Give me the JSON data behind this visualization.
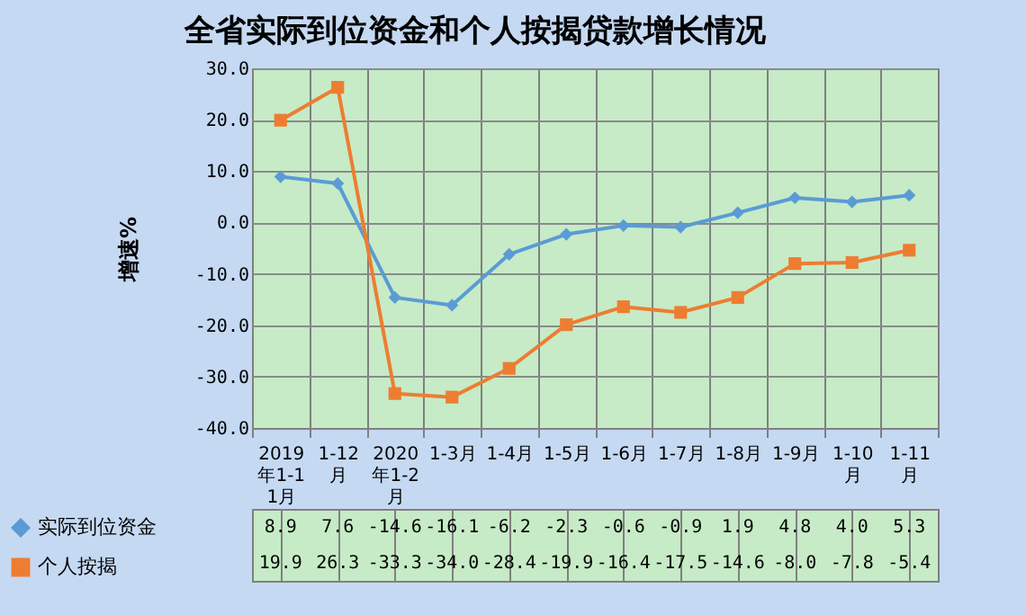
{
  "chart_data": {
    "type": "line",
    "title": "全省实际到位资金和个人按揭贷款增长情况",
    "ylabel": "增速%",
    "categories": [
      "2019年1-11月",
      "1-12月",
      "2020年1-2月",
      "1-3月",
      "1-4月",
      "1-5月",
      "1-6月",
      "1-7月",
      "1-8月",
      "1-9月",
      "1-10月",
      "1-11月"
    ],
    "series": [
      {
        "name": "实际到位资金",
        "color": "#5b9bd5",
        "marker": "diamond",
        "values": [
          8.9,
          7.6,
          -14.6,
          -16.1,
          -6.2,
          -2.3,
          -0.6,
          -0.9,
          1.9,
          4.8,
          4.0,
          5.3
        ],
        "value_labels": [
          "8.9",
          "7.6",
          "-14.6",
          "-16.1",
          "-6.2",
          "-2.3",
          "-0.6",
          "-0.9",
          "1.9",
          "4.8",
          "4.0",
          "5.3"
        ]
      },
      {
        "name": "个人按揭",
        "color": "#ed7d31",
        "marker": "square",
        "values": [
          19.9,
          26.3,
          -33.3,
          -34.0,
          -28.4,
          -19.9,
          -16.4,
          -17.5,
          -14.6,
          -8.0,
          -7.8,
          -5.4
        ],
        "value_labels": [
          "19.9",
          "26.3",
          "-33.3",
          "-34.0",
          "-28.4",
          "-19.9",
          "-16.4",
          "-17.5",
          "-14.6",
          "-8.0",
          "-7.8",
          "-5.4"
        ]
      }
    ],
    "ylim": [
      -40,
      30
    ],
    "yticks": [
      {
        "value": -40,
        "label": "-40.0"
      },
      {
        "value": -30,
        "label": "-30.0"
      },
      {
        "value": -20,
        "label": "-20.0"
      },
      {
        "value": -10,
        "label": "-10.0"
      },
      {
        "value": 0,
        "label": "0.0"
      },
      {
        "value": 10,
        "label": "10.0"
      },
      {
        "value": 20,
        "label": "20.0"
      },
      {
        "value": 30,
        "label": "30.0"
      }
    ],
    "grid": "y",
    "legend": "bottom",
    "line_style": "solid"
  }
}
